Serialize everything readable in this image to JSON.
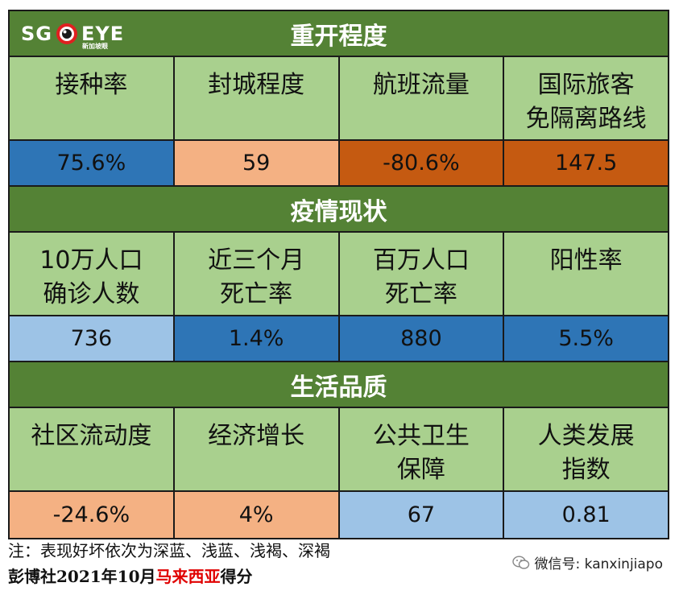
{
  "logo": {
    "left": "SG",
    "right": "EYE",
    "sub": "新加坡眼"
  },
  "sections": [
    {
      "title": "重开程度",
      "labels": [
        "接种率",
        "封城程度",
        "航班流量",
        "国际旅客\n免隔离路线"
      ],
      "values": [
        "75.6%",
        "59",
        "-80.6%",
        "147.5"
      ],
      "value_colors": [
        "dark-blue",
        "light-brown",
        "dark-brown",
        "dark-brown"
      ]
    },
    {
      "title": "疫情现状",
      "labels": [
        "10万人口\n确诊人数",
        "近三个月\n死亡率",
        "百万人口\n死亡率",
        "阳性率"
      ],
      "values": [
        "736",
        "1.4%",
        "880",
        "5.5%"
      ],
      "value_colors": [
        "light-blue",
        "dark-blue",
        "dark-blue",
        "dark-blue"
      ]
    },
    {
      "title": "生活品质",
      "labels": [
        "社区流动度",
        "经济增长",
        "公共卫生\n保障",
        "人类发展\n指数"
      ],
      "values": [
        "-24.6%",
        "4%",
        "67",
        "0.81"
      ],
      "value_colors": [
        "light-brown",
        "light-brown",
        "light-blue",
        "light-blue"
      ]
    }
  ],
  "colors": {
    "header": "#548235",
    "label_bg": "#a9d08e",
    "dark-blue": "#2e75b6",
    "light-blue": "#9dc3e6",
    "light-brown": "#f4b183",
    "dark-brown": "#c55a11"
  },
  "footnote": "注：表现好坏依次为深蓝、浅蓝、浅褐、深褐",
  "credit": {
    "prefix": "彭博社2021年10月",
    "highlight": "马来西亚",
    "suffix": "得分"
  },
  "wechat": {
    "icon": "wechat-icon",
    "text": "微信号: kanxinjiapo"
  }
}
